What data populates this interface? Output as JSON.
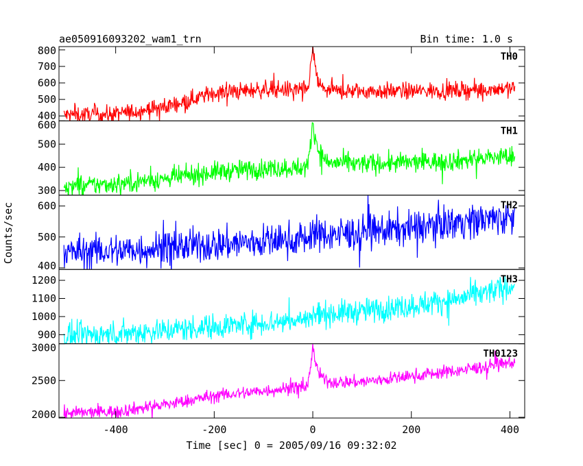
{
  "header": {
    "title": "ae050916093202_wam1_trn",
    "bin_time": "Bin time: 1.0 s"
  },
  "chart_data": {
    "type": "line",
    "xlabel": "Time [sec] 0 = 2005/09/16 09:32:02",
    "ylabel": "Counts/sec",
    "xlim": [
      -515,
      430
    ],
    "x_ticks": [
      -400,
      -200,
      0,
      200,
      400
    ],
    "x_range": [
      -505,
      410
    ],
    "grid": false,
    "panels": [
      {
        "name": "TH0",
        "color": "#ff0000",
        "ylim": [
          370,
          820
        ],
        "y_ticks": [
          400,
          500,
          600,
          700,
          800
        ],
        "trend": [
          [
            -505,
            405
          ],
          [
            -400,
            410
          ],
          [
            -300,
            455
          ],
          [
            -200,
            540
          ],
          [
            -100,
            560
          ],
          [
            -10,
            560
          ],
          [
            0,
            800
          ],
          [
            10,
            600
          ],
          [
            30,
            550
          ],
          [
            100,
            550
          ],
          [
            200,
            550
          ],
          [
            300,
            555
          ],
          [
            410,
            570
          ]
        ],
        "noise": 26
      },
      {
        "name": "TH1",
        "color": "#00ff00",
        "ylim": [
          280,
          600
        ],
        "y_ticks": [
          300,
          400,
          500,
          600
        ],
        "trend": [
          [
            -505,
            315
          ],
          [
            -400,
            330
          ],
          [
            -300,
            350
          ],
          [
            -200,
            380
          ],
          [
            -100,
            395
          ],
          [
            -10,
            400
          ],
          [
            0,
            595
          ],
          [
            10,
            480
          ],
          [
            30,
            420
          ],
          [
            100,
            415
          ],
          [
            200,
            420
          ],
          [
            300,
            430
          ],
          [
            410,
            450
          ]
        ],
        "noise": 22
      },
      {
        "name": "TH2",
        "color": "#0000ff",
        "ylim": [
          395,
          635
        ],
        "y_ticks": [
          400,
          500,
          600
        ],
        "trend": [
          [
            -505,
            450
          ],
          [
            -400,
            455
          ],
          [
            -300,
            465
          ],
          [
            -200,
            475
          ],
          [
            -100,
            485
          ],
          [
            -10,
            495
          ],
          [
            0,
            520
          ],
          [
            10,
            505
          ],
          [
            100,
            515
          ],
          [
            200,
            530
          ],
          [
            300,
            550
          ],
          [
            410,
            565
          ]
        ],
        "noise": 28
      },
      {
        "name": "TH3",
        "color": "#00ffff",
        "ylim": [
          850,
          1260
        ],
        "y_ticks": [
          900,
          1000,
          1100,
          1200
        ],
        "trend": [
          [
            -505,
            890
          ],
          [
            -400,
            905
          ],
          [
            -300,
            925
          ],
          [
            -200,
            945
          ],
          [
            -100,
            965
          ],
          [
            -10,
            985
          ],
          [
            0,
            1010
          ],
          [
            100,
            1030
          ],
          [
            200,
            1060
          ],
          [
            300,
            1100
          ],
          [
            410,
            1170
          ]
        ],
        "noise": 35
      },
      {
        "name": "TH0123",
        "color": "#ff00ff",
        "ylim": [
          1990,
          3000
        ],
        "y_ticks": [
          2000,
          2500,
          3000
        ],
        "trend": [
          [
            -505,
            2050
          ],
          [
            -400,
            2080
          ],
          [
            -300,
            2170
          ],
          [
            -200,
            2290
          ],
          [
            -100,
            2360
          ],
          [
            -10,
            2420
          ],
          [
            0,
            2950
          ],
          [
            10,
            2600
          ],
          [
            30,
            2480
          ],
          [
            100,
            2480
          ],
          [
            200,
            2560
          ],
          [
            300,
            2640
          ],
          [
            410,
            2750
          ]
        ],
        "noise": 45
      }
    ]
  }
}
